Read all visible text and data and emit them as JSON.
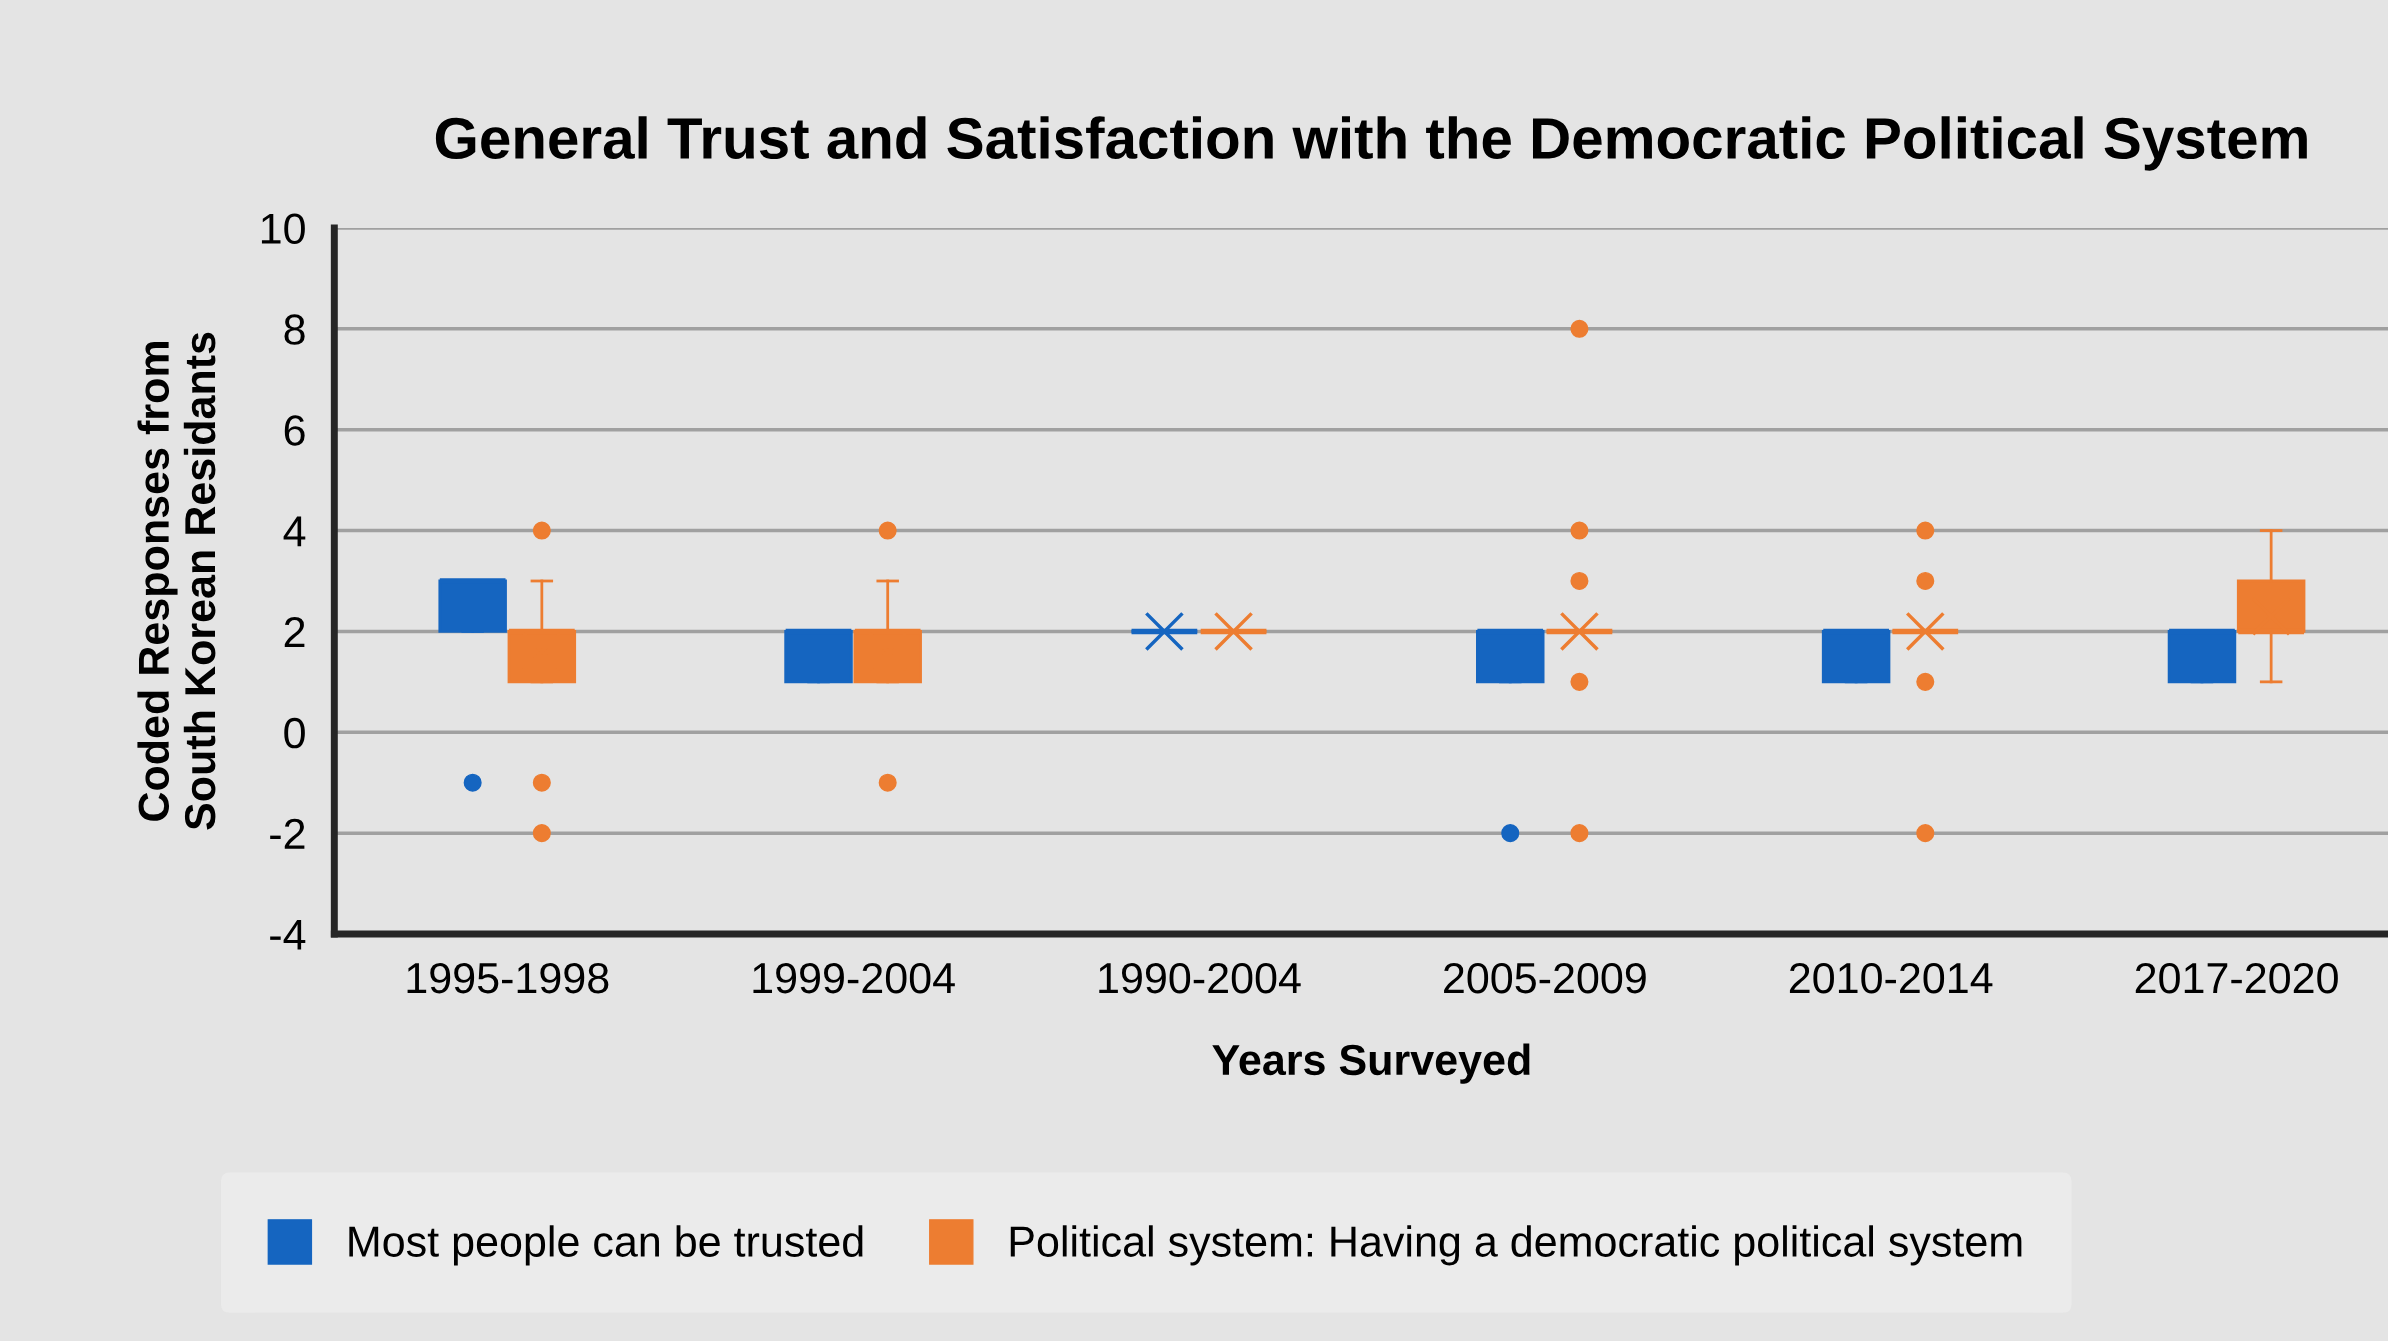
{
  "chart_data": {
    "type": "box",
    "title": "General Trust and Satisfaction with the Democratic Political System",
    "xlabel": "Years Surveyed",
    "ylabel": "Coded Responses from\nSouth Korean Residants",
    "categories": [
      "1995-1998",
      "1999-2004",
      "1990-2004",
      "2005-2009",
      "2010-2014",
      "2017-2020"
    ],
    "series": [
      {
        "name": "Most people can be trusted",
        "color": "#1565c0",
        "boxes": [
          {
            "low": 2,
            "q1": 2,
            "median": 3,
            "q3": 3,
            "high": 3,
            "outliers": [
              -1
            ]
          },
          {
            "low": 1,
            "q1": 1,
            "median": 2,
            "q3": 2,
            "high": 2
          },
          {
            "low": 2,
            "q1": 2,
            "median": 2,
            "q3": 2,
            "high": 2,
            "mean": 2
          },
          {
            "low": 1,
            "q1": 1,
            "median": 2,
            "q3": 2,
            "high": 2,
            "outliers": [
              -2
            ]
          },
          {
            "low": 1,
            "q1": 1,
            "median": 2,
            "q3": 2,
            "high": 2
          },
          {
            "low": 1,
            "q1": 1,
            "median": 2,
            "q3": 2,
            "high": 2
          }
        ]
      },
      {
        "name": "Political system: Having a democratic political system",
        "color": "#ed7d31",
        "boxes": [
          {
            "low": 1,
            "q1": 1,
            "median": 2,
            "q3": 2,
            "high": 3,
            "mean": 1.6,
            "outliers": [
              4,
              -1,
              -2
            ]
          },
          {
            "low": 1,
            "q1": 1,
            "median": 2,
            "q3": 2,
            "high": 3,
            "mean": 1.6,
            "outliers": [
              4,
              -1
            ]
          },
          {
            "low": 2,
            "q1": 2,
            "median": 2,
            "q3": 2,
            "high": 2,
            "mean": 2
          },
          {
            "low": 2,
            "q1": 2,
            "median": 2,
            "q3": 2,
            "high": 2,
            "mean": 2,
            "outliers": [
              8,
              4,
              3,
              1,
              -2
            ]
          },
          {
            "low": 2,
            "q1": 2,
            "median": 2,
            "q3": 2,
            "high": 2,
            "mean": 2,
            "outliers": [
              4,
              3,
              1,
              -2
            ]
          },
          {
            "low": 1,
            "q1": 2,
            "median": 2,
            "q3": 3,
            "high": 4,
            "mean": 2.3
          }
        ]
      }
    ],
    "ylim": [
      -4,
      10
    ],
    "yticks": [
      -4,
      -2,
      0,
      2,
      4,
      6,
      8,
      10
    ],
    "grid": "y",
    "legend": "bottom"
  }
}
